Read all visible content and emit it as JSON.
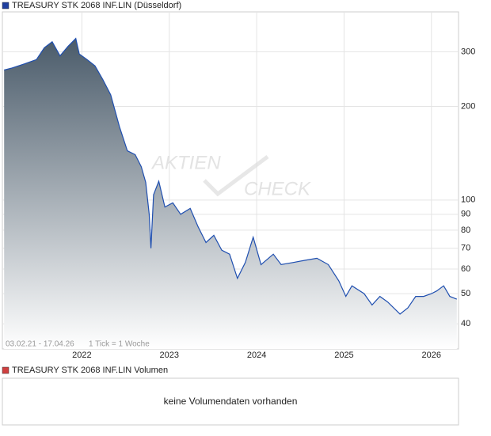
{
  "chart_data": {
    "type": "area",
    "title": "TREASURY STK 2068 INF.LIN (Düsseldorf)",
    "range_label": "03.02.21 - 17.04.26",
    "tick_note": "1 Tick = 1 Woche",
    "watermark": [
      "AKTIEN",
      "CHECK"
    ],
    "x": [
      2021.11,
      2021.2,
      2021.34,
      2021.48,
      2021.57,
      2021.66,
      2021.75,
      2021.84,
      2021.93,
      2021.97,
      2022.06,
      2022.15,
      2022.24,
      2022.33,
      2022.43,
      2022.52,
      2022.61,
      2022.68,
      2022.73,
      2022.77,
      2022.79,
      2022.82,
      2022.88,
      2022.95,
      2023.04,
      2023.13,
      2023.24,
      2023.33,
      2023.42,
      2023.51,
      2023.6,
      2023.69,
      2023.78,
      2023.87,
      2023.96,
      2024.05,
      2024.19,
      2024.28,
      2024.42,
      2024.55,
      2024.69,
      2024.82,
      2024.94,
      2025.02,
      2025.09,
      2025.23,
      2025.32,
      2025.41,
      2025.5,
      2025.64,
      2025.73,
      2025.82,
      2025.91,
      2026.0,
      2026.06,
      2026.14,
      2026.21,
      2026.29
    ],
    "series": [
      {
        "name": "TREASURY STK 2068 INF.LIN (Düsseldorf)",
        "color": "#1f4fb0",
        "values": [
          262,
          266,
          274,
          283,
          309,
          323,
          291,
          312,
          331,
          295,
          283,
          270,
          244,
          218,
          172,
          144,
          140,
          128,
          114,
          90,
          70,
          104,
          115,
          95,
          98,
          90,
          94,
          82,
          73,
          77,
          69,
          67,
          56,
          63,
          76,
          62,
          67,
          62,
          63,
          64,
          65,
          62,
          55,
          49,
          53,
          50,
          46,
          49,
          47,
          43,
          45,
          49,
          49,
          50,
          51,
          53,
          49,
          48
        ]
      }
    ],
    "xlim": [
      2021.09,
      2026.31
    ],
    "xticks": [
      2022,
      2023,
      2024,
      2025,
      2026
    ],
    "ylim": [
      33.2,
      403
    ],
    "yticks": [
      40,
      50,
      60,
      70,
      80,
      90,
      100,
      200,
      300
    ],
    "log_y": true,
    "grid": true,
    "volume_title": "TREASURY STK 2068 INF.LIN Volumen",
    "volume_message": "keine Volumendaten vorhanden"
  }
}
